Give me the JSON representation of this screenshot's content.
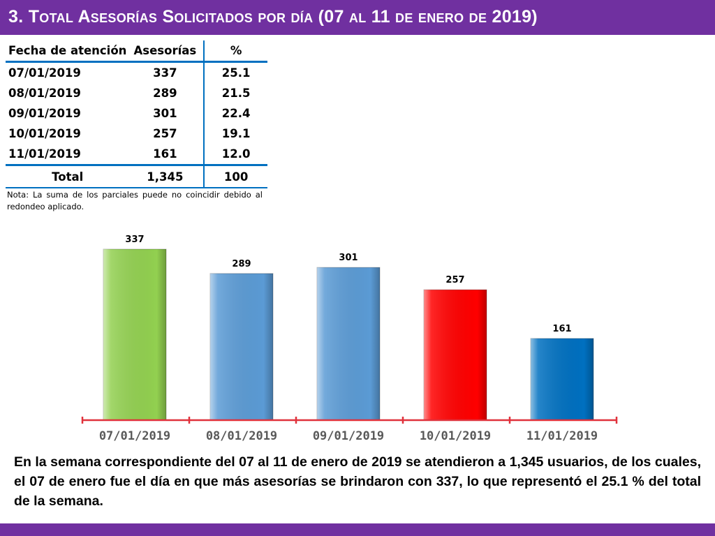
{
  "header": {
    "title": "3.  Total Asesorías Solicitados por día  (07 al 11 de enero de 2019)"
  },
  "table": {
    "headers": [
      "Fecha de atención",
      "Asesorías",
      "%"
    ],
    "rows": [
      {
        "date": "07/01/2019",
        "count": "337",
        "pct": "25.1"
      },
      {
        "date": "08/01/2019",
        "count": "289",
        "pct": "21.5"
      },
      {
        "date": "09/01/2019",
        "count": "301",
        "pct": "22.4"
      },
      {
        "date": "10/01/2019",
        "count": "257",
        "pct": "19.1"
      },
      {
        "date": "11/01/2019",
        "count": "161",
        "pct": "12.0"
      }
    ],
    "total": {
      "label": "Total",
      "count": "1,345",
      "pct": "100"
    }
  },
  "note": "Nota: La suma de los parciales puede no coincidir debido al redondeo aplicado.",
  "chart_data": {
    "type": "bar",
    "title": "",
    "xlabel": "",
    "ylabel": "",
    "categories": [
      "07/01/2019",
      "08/01/2019",
      "09/01/2019",
      "10/01/2019",
      "11/01/2019"
    ],
    "values": [
      337,
      289,
      301,
      257,
      161
    ],
    "colors": [
      "#92d050",
      "#5b9bd5",
      "#5b9bd5",
      "#ff0000",
      "#0070c0"
    ],
    "axis_color": "#e0323c",
    "grid": false,
    "legend": "none",
    "data_labels": true
  },
  "summary": "En la semana correspondiente del 07 al 11 de enero de 2019 se atendieron a 1,345 usuarios, de los cuales, el 07 de enero fue el día en que más asesorías se brindaron con 337, lo que representó el 25.1 % del total de la semana."
}
